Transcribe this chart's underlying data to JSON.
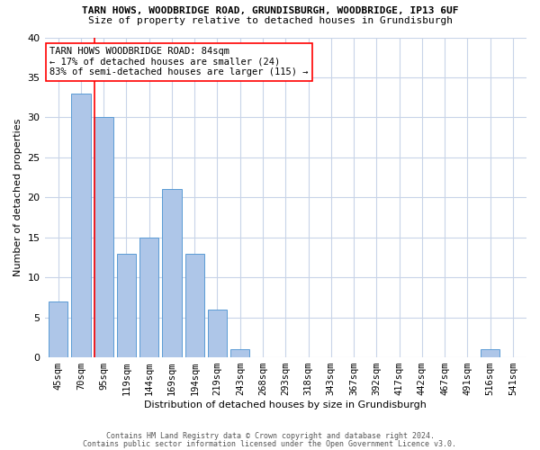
{
  "title": "TARN HOWS, WOODBRIDGE ROAD, GRUNDISBURGH, WOODBRIDGE, IP13 6UF",
  "subtitle": "Size of property relative to detached houses in Grundisburgh",
  "xlabel": "Distribution of detached houses by size in Grundisburgh",
  "ylabel": "Number of detached properties",
  "categories": [
    "45sqm",
    "70sqm",
    "95sqm",
    "119sqm",
    "144sqm",
    "169sqm",
    "194sqm",
    "219sqm",
    "243sqm",
    "268sqm",
    "293sqm",
    "318sqm",
    "343sqm",
    "367sqm",
    "392sqm",
    "417sqm",
    "442sqm",
    "467sqm",
    "491sqm",
    "516sqm",
    "541sqm"
  ],
  "values": [
    7,
    33,
    30,
    13,
    15,
    21,
    13,
    6,
    1,
    0,
    0,
    0,
    0,
    0,
    0,
    0,
    0,
    0,
    0,
    1,
    0
  ],
  "bar_color": "#aec6e8",
  "bar_edge_color": "#5b9bd5",
  "ylim": [
    0,
    40
  ],
  "yticks": [
    0,
    5,
    10,
    15,
    20,
    25,
    30,
    35,
    40
  ],
  "annotation_text": "TARN HOWS WOODBRIDGE ROAD: 84sqm\n← 17% of detached houses are smaller (24)\n83% of semi-detached houses are larger (115) →",
  "footnote1": "Contains HM Land Registry data © Crown copyright and database right 2024.",
  "footnote2": "Contains public sector information licensed under the Open Government Licence v3.0.",
  "background_color": "#ffffff",
  "grid_color": "#c8d4e8",
  "redline_x": 1.58,
  "title_fontsize": 8.0,
  "subtitle_fontsize": 8.0,
  "axis_label_fontsize": 8.0,
  "tick_fontsize": 7.5,
  "annot_fontsize": 7.5,
  "footnote_fontsize": 6.0
}
